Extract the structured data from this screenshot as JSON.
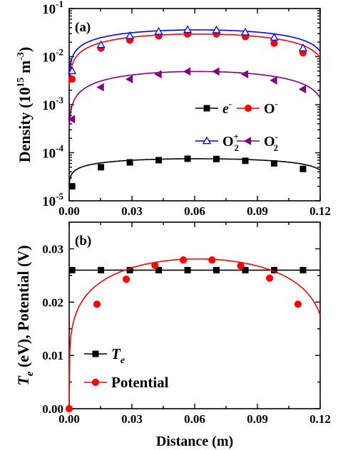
{
  "chart_data": [
    {
      "panel_label": "(a)",
      "type": "line",
      "x_scale": "linear",
      "y_scale": "log",
      "xlim": [
        0.0,
        0.12
      ],
      "ylim": [
        1e-05,
        0.1
      ],
      "x_tick_labels": [
        "0.00",
        "0.03",
        "0.06",
        "0.09",
        "0.12"
      ],
      "x_tick_values": [
        0.0,
        0.03,
        0.06,
        0.09,
        0.12
      ],
      "y_tick_values": [
        1e-05,
        0.0001,
        0.001,
        0.01,
        0.1
      ],
      "y_tick_labels": [
        {
          "base": "10",
          "exp": "-5"
        },
        {
          "base": "10",
          "exp": "-4"
        },
        {
          "base": "10",
          "exp": "-3"
        },
        {
          "base": "10",
          "exp": "-2"
        },
        {
          "base": "10",
          "exp": "-1"
        }
      ],
      "ylabel": {
        "main": "Density (10",
        "exp": "15",
        "rest": " m",
        "rest_exp": "-3",
        "close": ")"
      },
      "xlabel": "",
      "legend": [
        {
          "series": 0,
          "text": "e",
          "sup": "-"
        },
        {
          "series": 1,
          "text": "O",
          "sup": "-"
        },
        {
          "series": 2,
          "text": "O",
          "sub": "2",
          "sup": "+"
        },
        {
          "series": 3,
          "text": "O",
          "sub": "2",
          "sup": "-"
        }
      ],
      "series": [
        {
          "name": "e-",
          "color": "#000000",
          "marker": "square",
          "x": [
            0.0014,
            0.0152,
            0.029,
            0.0428,
            0.0566,
            0.0704,
            0.0842,
            0.098,
            0.1118
          ],
          "y": [
            2e-05,
            5e-05,
            6.3e-05,
            7e-05,
            7.5e-05,
            7.4e-05,
            6.8e-05,
            6e-05,
            4.6e-05
          ],
          "profile": {
            "peak": 7.5e-05,
            "center": 0.0615,
            "half_width": 0.0617,
            "power": 0.24
          }
        },
        {
          "name": "O-",
          "color": "#ff0000",
          "marker": "circle",
          "x": [
            0.0014,
            0.0152,
            0.029,
            0.0428,
            0.0566,
            0.0704,
            0.0842,
            0.098,
            0.1118
          ],
          "y": [
            0.0034,
            0.015,
            0.022,
            0.027,
            0.0295,
            0.0295,
            0.026,
            0.019,
            0.012
          ],
          "profile": {
            "peak": 0.0295,
            "center": 0.0615,
            "half_width": 0.0617,
            "power": 0.5
          }
        },
        {
          "name": "O2+",
          "color": "#0000ff",
          "marker": "triangle-open",
          "x": [
            0.0014,
            0.0152,
            0.029,
            0.0428,
            0.0566,
            0.0704,
            0.0842,
            0.098,
            0.1118
          ],
          "y": [
            0.005,
            0.0175,
            0.027,
            0.033,
            0.036,
            0.0355,
            0.032,
            0.025,
            0.015
          ],
          "profile": {
            "peak": 0.036,
            "center": 0.0615,
            "half_width": 0.0617,
            "power": 0.45
          }
        },
        {
          "name": "O2-",
          "color": "#800080",
          "marker": "triangle-left",
          "x": [
            0.0014,
            0.0152,
            0.029,
            0.0428,
            0.0566,
            0.0704,
            0.0842,
            0.098,
            0.1118
          ],
          "y": [
            0.0005,
            0.0023,
            0.0034,
            0.0043,
            0.0049,
            0.0049,
            0.0043,
            0.0032,
            0.0021
          ],
          "profile": {
            "peak": 0.0049,
            "center": 0.0615,
            "half_width": 0.0617,
            "power": 0.55
          }
        }
      ]
    },
    {
      "panel_label": "(b)",
      "type": "line",
      "x_scale": "linear",
      "y_scale": "linear",
      "xlim": [
        0.0,
        0.12
      ],
      "ylim": [
        0.0,
        0.035
      ],
      "x_tick_labels": [
        "0.00",
        "0.03",
        "0.06",
        "0.09",
        "0.12"
      ],
      "x_tick_values": [
        0.0,
        0.03,
        0.06,
        0.09,
        0.12
      ],
      "y_tick_labels": [
        "0.00",
        "0.01",
        "0.02",
        "0.03"
      ],
      "y_tick_values": [
        0.0,
        0.01,
        0.02,
        0.03
      ],
      "ylabel": {
        "T": "T",
        "T_sub": "e",
        "rest": " (eV), Potential (V)"
      },
      "xlabel": "Distance (m)",
      "legend": [
        {
          "series": 0,
          "text": "T",
          "sub": "e"
        },
        {
          "series": 1,
          "text": "Potential"
        }
      ],
      "series": [
        {
          "name": "Te",
          "color": "#000000",
          "marker": "square",
          "x": [
            0.0014,
            0.0152,
            0.029,
            0.0428,
            0.0566,
            0.0704,
            0.0842,
            0.098,
            0.1118
          ],
          "y": [
            0.026,
            0.026,
            0.026,
            0.026,
            0.026,
            0.026,
            0.026,
            0.026,
            0.026
          ]
        },
        {
          "name": "Potential",
          "color": "#ff0000",
          "marker": "circle",
          "x": [
            0.0,
            0.0133,
            0.0273,
            0.041,
            0.0546,
            0.0683,
            0.082,
            0.0958,
            0.1094
          ],
          "y": [
            0.0,
            0.0196,
            0.0243,
            0.0269,
            0.0279,
            0.0279,
            0.0268,
            0.0245,
            0.0196
          ],
          "profile": {
            "peak": 0.0281,
            "center": 0.0615,
            "half_width": 0.0615,
            "power": 0.2
          }
        }
      ]
    }
  ]
}
